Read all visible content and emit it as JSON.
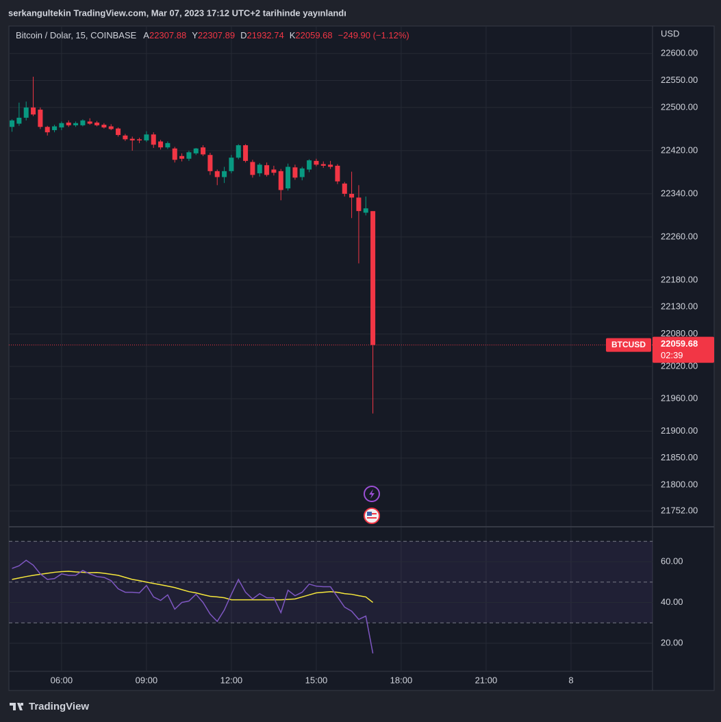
{
  "header": {
    "text": "serkangultekin TradingView.com, Mar 07, 2023 17:12 UTC+2 tarihinde yayınlandı"
  },
  "footer": {
    "logo_text": "TradingView"
  },
  "chart_data": [
    {
      "type": "candlestick",
      "title": "Bitcoin / Dolar, 15, COINBASE",
      "ohlc_labels": [
        "A",
        "Y",
        "D",
        "K"
      ],
      "change": "−249.90 (−1.12%)",
      "currency": "USD",
      "symbol": "BTCUSD",
      "countdown": "02:39",
      "x": [
        4.25,
        4.5,
        4.75,
        5,
        5.25,
        5.5,
        5.75,
        6,
        6.25,
        6.5,
        6.75,
        7,
        7.25,
        7.5,
        7.75,
        8,
        8.25,
        8.5,
        8.75,
        9,
        9.25,
        9.5,
        9.75,
        10,
        10.25,
        10.5,
        10.75,
        11,
        11.25,
        11.5,
        11.75,
        12,
        12.25,
        12.5,
        12.75,
        13,
        13.25,
        13.5,
        13.75,
        14,
        14.25,
        14.5,
        14.75,
        15,
        15.25,
        15.5,
        15.75,
        16,
        16.25,
        16.5,
        16.75,
        17
      ],
      "open": [
        22464,
        22470,
        22481,
        22500,
        22496,
        22464,
        22458,
        22463,
        22472,
        22467,
        22467,
        22474,
        22472,
        22468,
        22465,
        22461,
        22448,
        22442,
        22441,
        22439,
        22450,
        22437,
        22426,
        22424,
        22410,
        22405,
        22415,
        22426,
        22412,
        22382,
        22371,
        22382,
        22407,
        22430,
        22399,
        22378,
        22393,
        22385,
        22382,
        22350,
        22389,
        22371,
        22385,
        22401,
        22395,
        22394,
        22392,
        22359,
        22340,
        22333,
        22305,
        22307.88
      ],
      "high": [
        22478,
        22509,
        22511,
        22557,
        22500,
        22466,
        22468,
        22474,
        22476,
        22474,
        22478,
        22480,
        22475,
        22471,
        22469,
        22463,
        22451,
        22446,
        22444,
        22456,
        22454,
        22440,
        22437,
        22427,
        22415,
        22420,
        22425,
        22430,
        22416,
        22385,
        22390,
        22412,
        22432,
        22432,
        22403,
        22397,
        22398,
        22392,
        22386,
        22396,
        22394,
        22390,
        22404,
        22405,
        22400,
        22401,
        22395,
        22362,
        22381,
        22356,
        22335,
        22307.89
      ],
      "low": [
        22455,
        22466,
        22476,
        22484,
        22460,
        22448,
        22454,
        22458,
        22464,
        22464,
        22465,
        22468,
        22465,
        22461,
        22458,
        22446,
        22438,
        22420,
        22434,
        22436,
        22425,
        22422,
        22423,
        22398,
        22400,
        22401,
        22412,
        22410,
        22375,
        22356,
        22360,
        22378,
        22404,
        22398,
        22370,
        22372,
        22372,
        22374,
        22328,
        22346,
        22366,
        22365,
        22380,
        22391,
        22388,
        22386,
        22358,
        22335,
        22295,
        22211,
        22300,
        21932.74
      ],
      "close": [
        22476,
        22481,
        22500,
        22487,
        22464,
        22454,
        22465,
        22471,
        22467,
        22471,
        22476,
        22470,
        22467,
        22463,
        22460,
        22449,
        22441,
        22439,
        22439,
        22450,
        22431,
        22426,
        22434,
        22403,
        22405,
        22417,
        22424,
        22413,
        22382,
        22371,
        22382,
        22407,
        22430,
        22401,
        22375,
        22394,
        22375,
        22379,
        22347,
        22390,
        22370,
        22387,
        22402,
        22394,
        22392,
        22390,
        22363,
        22340,
        22333,
        22308,
        22313,
        22059.68
      ],
      "up_color": "#089981",
      "down_color": "#f23645",
      "xlim": [
        4.14,
        26.88
      ],
      "ylim": [
        21724,
        22651
      ],
      "yticks": [
        {
          "value": 22600,
          "label": "22600.00"
        },
        {
          "value": 22550,
          "label": "22550.00"
        },
        {
          "value": 22500,
          "label": "22500.00"
        },
        {
          "value": 22420,
          "label": "22420.00"
        },
        {
          "value": 22340,
          "label": "22340.00"
        },
        {
          "value": 22260,
          "label": "22260.00"
        },
        {
          "value": 22180,
          "label": "22180.00"
        },
        {
          "value": 22130,
          "label": "22130.00"
        },
        {
          "value": 22080,
          "label": "22080.00"
        },
        {
          "value": 22020,
          "label": "22020.00"
        },
        {
          "value": 21960,
          "label": "21960.00"
        },
        {
          "value": 21900,
          "label": "21900.00"
        },
        {
          "value": 21850,
          "label": "21850.00"
        },
        {
          "value": 21800,
          "label": "21800.00"
        },
        {
          "value": 21752,
          "label": "21752.00"
        }
      ],
      "grid": true
    },
    {
      "type": "line",
      "x": [
        4.25,
        4.5,
        4.75,
        5,
        5.25,
        5.5,
        5.75,
        6,
        6.25,
        6.5,
        6.75,
        7,
        7.25,
        7.5,
        7.75,
        8,
        8.25,
        8.5,
        8.75,
        9,
        9.25,
        9.5,
        9.75,
        10,
        10.25,
        10.5,
        10.75,
        11,
        11.25,
        11.5,
        11.75,
        12,
        12.25,
        12.5,
        12.75,
        13,
        13.25,
        13.5,
        13.75,
        14,
        14.25,
        14.5,
        14.75,
        15,
        15.25,
        15.5,
        15.75,
        16,
        16.25,
        16.5,
        16.75,
        17
      ],
      "series": [
        {
          "color": "#7e57c2",
          "values": [
            56.7,
            58,
            60.7,
            58.3,
            54,
            51.3,
            51.7,
            54,
            53.3,
            53.3,
            55.7,
            54,
            52.7,
            52.3,
            50.7,
            46.7,
            45,
            45,
            44.7,
            48.3,
            42.7,
            41,
            43.7,
            36.7,
            40,
            40.7,
            44,
            40,
            34.3,
            30.7,
            36.3,
            44,
            51.3,
            45,
            41.7,
            44.3,
            42.3,
            42.3,
            35,
            46,
            43.3,
            45,
            49,
            48,
            47.7,
            47.7,
            42.7,
            37.7,
            35.7,
            31.7,
            33.3,
            15
          ]
        },
        {
          "color": "#f7e83b",
          "values": [
            51.3,
            52,
            52.7,
            53.3,
            53.8,
            54.3,
            54.8,
            55.1,
            55.3,
            55,
            54.8,
            54.6,
            54.7,
            54.3,
            53.8,
            53.3,
            52.3,
            51.3,
            50.7,
            50,
            49.3,
            48.7,
            48,
            47.3,
            46.3,
            45.3,
            44.7,
            43.8,
            43,
            42.7,
            42.3,
            41.3,
            41.3,
            41.3,
            41.3,
            41.3,
            41.3,
            41.3,
            41.3,
            41.5,
            41.7,
            42.7,
            43.7,
            44.7,
            45,
            45.3,
            45,
            44.3,
            44,
            43.3,
            42.7,
            40
          ]
        }
      ],
      "bands": [
        30,
        50,
        70
      ],
      "xlim": [
        4.14,
        26.88
      ],
      "ylim": [
        6.2,
        76.8
      ],
      "yticks": [
        {
          "value": 60,
          "label": "60.00"
        },
        {
          "value": 40,
          "label": "40.00"
        },
        {
          "value": 20,
          "label": "20.00"
        }
      ],
      "xticks": [
        {
          "value": 6,
          "label": "06:00"
        },
        {
          "value": 9,
          "label": "09:00"
        },
        {
          "value": 12,
          "label": "12:00"
        },
        {
          "value": 15,
          "label": "15:00"
        },
        {
          "value": 18,
          "label": "18:00"
        },
        {
          "value": 21,
          "label": "21:00"
        },
        {
          "value": 24,
          "label": "8"
        }
      ],
      "grid": true
    }
  ]
}
